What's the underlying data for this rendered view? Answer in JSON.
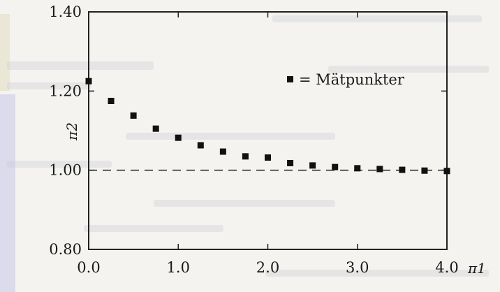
{
  "chart_data": {
    "type": "scatter",
    "title": "",
    "xlabel": "π1",
    "ylabel": "π2",
    "xlim": [
      0.0,
      4.0
    ],
    "ylim": [
      0.8,
      1.4
    ],
    "x_ticks": [
      "0.0",
      "1.0",
      "2.0",
      "3.0",
      "4.0"
    ],
    "y_ticks": [
      "0.80",
      "1.00",
      "1.20",
      "1.40"
    ],
    "reference_line": {
      "y": 1.0,
      "style": "dashed"
    },
    "legend": {
      "position": "top-right",
      "label": "= Mätpunkter"
    },
    "grid": false,
    "series": [
      {
        "name": "Mätpunkter",
        "marker": "square",
        "color": "#111111",
        "x": [
          0.0,
          0.25,
          0.5,
          0.75,
          1.0,
          1.25,
          1.5,
          1.75,
          2.0,
          2.25,
          2.5,
          2.75,
          3.0,
          3.25,
          3.5,
          3.75,
          4.0
        ],
        "y": [
          1.225,
          1.175,
          1.138,
          1.105,
          1.082,
          1.063,
          1.047,
          1.035,
          1.032,
          1.018,
          1.012,
          1.008,
          1.005,
          1.003,
          1.001,
          0.999,
          0.998
        ]
      }
    ]
  }
}
